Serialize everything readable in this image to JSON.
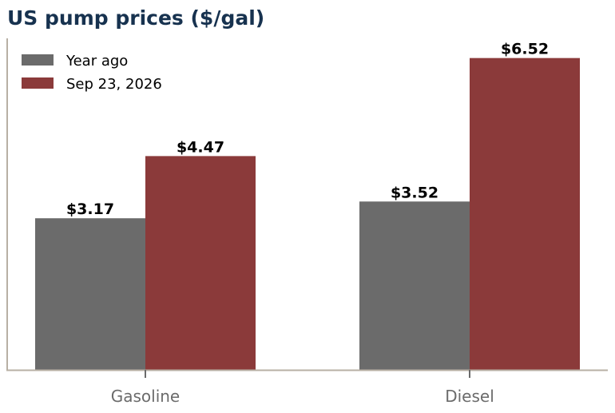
{
  "chart_data": {
    "type": "bar",
    "title": "US pump prices ($/gal)",
    "categories": [
      "Gasoline",
      "Diesel"
    ],
    "series": [
      {
        "name": "Year ago",
        "values": [
          3.17,
          3.52
        ],
        "labels": [
          "$3.17",
          "$3.52"
        ],
        "color": "#6b6b6b"
      },
      {
        "name": "Sep 23, 2026",
        "values": [
          4.47,
          6.52
        ],
        "labels": [
          "$4.47",
          "$6.52"
        ],
        "color": "#8b3a3a"
      }
    ],
    "ylim": [
      0,
      7.6
    ],
    "xlabel": "",
    "ylabel": "",
    "grid": false,
    "legend_position": "top-left",
    "title_color": "#17324f",
    "axis_color": "#b8b0a4",
    "tick_label_color": "#6b6b6b"
  }
}
